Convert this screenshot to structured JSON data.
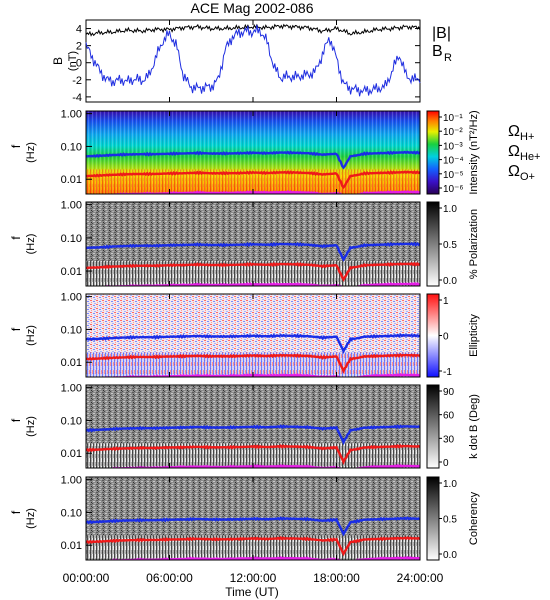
{
  "title": "ACE Mag 2002-086",
  "colors": {
    "b_mag": "#000000",
    "b_r": "#1f2ee0",
    "h_gyro": "#1a2de6",
    "he_gyro": "#ee1a1a",
    "o_gyro": "#e51ee5"
  },
  "chart_data": [
    {
      "type": "line",
      "panel": "B",
      "ylabel": "B",
      "yunit": "(nT)",
      "yticks": [
        "4",
        "2",
        "0",
        "-2",
        "-4"
      ],
      "ylim": [
        -4.6,
        5
      ],
      "series": [
        {
          "name": "|B|",
          "label": "|B|",
          "x_hours": [
            0,
            1,
            2,
            3,
            4,
            5,
            6,
            7,
            8,
            9,
            10,
            11,
            12,
            13,
            14,
            15,
            16,
            17,
            18,
            19,
            20,
            21,
            22,
            23,
            24
          ],
          "values": [
            3.3,
            3.5,
            3.6,
            3.8,
            3.7,
            3.9,
            3.9,
            4.1,
            4.2,
            4.0,
            4.0,
            4.1,
            4.2,
            4.1,
            4.3,
            4.2,
            4.1,
            3.7,
            4.0,
            3.4,
            3.6,
            3.9,
            4.0,
            4.2,
            4.1
          ]
        },
        {
          "name": "B_R",
          "label_main": "B",
          "label_sub": "R",
          "x_hours": [
            0,
            0.5,
            1,
            1.5,
            2,
            2.5,
            3,
            3.5,
            4,
            4.5,
            5,
            5.5,
            6,
            6.5,
            7,
            7.5,
            8,
            8.5,
            9,
            9.5,
            10,
            10.5,
            11,
            11.5,
            12,
            12.5,
            13,
            13.5,
            14,
            14.5,
            15,
            15.5,
            16,
            16.5,
            17,
            17.5,
            18,
            18.5,
            19,
            19.5,
            20,
            20.5,
            21,
            21.5,
            22,
            22.5,
            23,
            23.5,
            24
          ],
          "values": [
            2.0,
            0.5,
            -1.0,
            -2.0,
            -2.2,
            -2.0,
            -2.2,
            -1.9,
            -2.1,
            -1.6,
            0.5,
            2.5,
            3.4,
            2.0,
            -1.5,
            -2.8,
            -3.0,
            -2.9,
            -2.8,
            -2.0,
            1.5,
            3.0,
            3.5,
            3.7,
            3.6,
            3.8,
            2.5,
            -0.5,
            -1.8,
            -1.6,
            -1.7,
            -1.5,
            -1.4,
            -1.0,
            1.0,
            3.0,
            0.5,
            -2.5,
            -3.0,
            -3.2,
            -3.3,
            -3.2,
            -3.0,
            -2.8,
            -1.0,
            1.0,
            -1.5,
            -2.0,
            -1.8
          ]
        }
      ]
    },
    {
      "type": "heatmap",
      "panel": "intensity",
      "ylabel": "f",
      "yunit": "(Hz)",
      "yscale": "log",
      "yticks": [
        "1.00",
        "0.10",
        "0.01"
      ],
      "colorbar_label": "Intensity (nT²/Hz)",
      "colorbar_ticks": [
        "10⁻¹",
        "10⁻²",
        "10⁻³",
        "10⁻⁴",
        "10⁻⁵",
        "10⁻⁶"
      ],
      "colorbar_range": [
        1e-06,
        0.1
      ]
    },
    {
      "type": "heatmap",
      "panel": "polarization",
      "ylabel": "f",
      "yunit": "(Hz)",
      "yscale": "log",
      "yticks": [
        "1.00",
        "0.10",
        "0.01"
      ],
      "colorbar_label": "% Polarization",
      "colorbar_ticks": [
        "1.0",
        "0.5",
        "0.0"
      ],
      "colorbar_range": [
        0,
        1
      ]
    },
    {
      "type": "heatmap",
      "panel": "ellipticity",
      "ylabel": "f",
      "yunit": "(Hz)",
      "yscale": "log",
      "yticks": [
        "1.00",
        "0.10",
        "0.01"
      ],
      "colorbar_label": "Ellipticity",
      "colorbar_ticks": [
        "1",
        "0",
        "-1"
      ],
      "colorbar_range": [
        -1,
        1
      ]
    },
    {
      "type": "heatmap",
      "panel": "kdotb",
      "ylabel": "f",
      "yunit": "(Hz)",
      "yscale": "log",
      "yticks": [
        "1.00",
        "0.10",
        "0.01"
      ],
      "colorbar_label": "k dot B (Deg)",
      "colorbar_ticks": [
        "90",
        "60",
        "30",
        "0"
      ],
      "colorbar_range": [
        0,
        90
      ]
    },
    {
      "type": "heatmap",
      "panel": "coherency",
      "ylabel": "f",
      "yunit": "(Hz)",
      "yscale": "log",
      "yticks": [
        "1.00",
        "0.10",
        "0.01"
      ],
      "colorbar_label": "Coherency",
      "colorbar_ticks": [
        "1.0",
        "0.5",
        "0.0"
      ],
      "colorbar_range": [
        0,
        1
      ]
    }
  ],
  "gyrofrequencies": {
    "legend": [
      {
        "symbol": "Ω",
        "sub": "H+",
        "color": "#1a2de6"
      },
      {
        "symbol": "Ω",
        "sub": "He+",
        "color": "#ee1a1a"
      },
      {
        "symbol": "Ω",
        "sub": "O+",
        "color": "#e51ee5"
      }
    ],
    "x_hours": [
      0,
      1,
      2,
      3,
      4,
      5,
      6,
      7,
      8,
      9,
      10,
      11,
      12,
      13,
      14,
      15,
      16,
      17,
      18,
      18.5,
      19,
      19.5,
      20,
      21,
      22,
      23,
      24
    ],
    "h_hz": [
      0.05,
      0.052,
      0.055,
      0.057,
      0.058,
      0.058,
      0.06,
      0.061,
      0.063,
      0.061,
      0.061,
      0.062,
      0.064,
      0.062,
      0.065,
      0.064,
      0.062,
      0.056,
      0.06,
      0.022,
      0.05,
      0.054,
      0.06,
      0.062,
      0.064,
      0.066,
      0.064
    ],
    "he_hz": [
      0.0125,
      0.013,
      0.0137,
      0.0142,
      0.0145,
      0.0145,
      0.015,
      0.0152,
      0.0157,
      0.0152,
      0.0152,
      0.0155,
      0.016,
      0.0155,
      0.0162,
      0.016,
      0.0155,
      0.014,
      0.015,
      0.0055,
      0.0125,
      0.0135,
      0.015,
      0.0155,
      0.016,
      0.0165,
      0.016
    ],
    "o_hz": [
      0.0031,
      0.0032,
      0.0034,
      0.0035,
      0.0036,
      0.0036,
      0.0037,
      0.0038,
      0.0039,
      0.0038,
      0.0038,
      0.0039,
      0.004,
      0.0039,
      0.004,
      0.004,
      0.0039,
      0.0035,
      0.0037,
      0.0032,
      0.0031,
      0.0034,
      0.0037,
      0.0039,
      0.004,
      0.0041,
      0.004
    ]
  },
  "x_axis": {
    "label": "Time (UT)",
    "tick_labels": [
      "00:00:00",
      "06:00:00",
      "12:00:00",
      "18:00:00",
      "24:00:00"
    ],
    "tick_hours": [
      0,
      6,
      12,
      18,
      24
    ]
  }
}
